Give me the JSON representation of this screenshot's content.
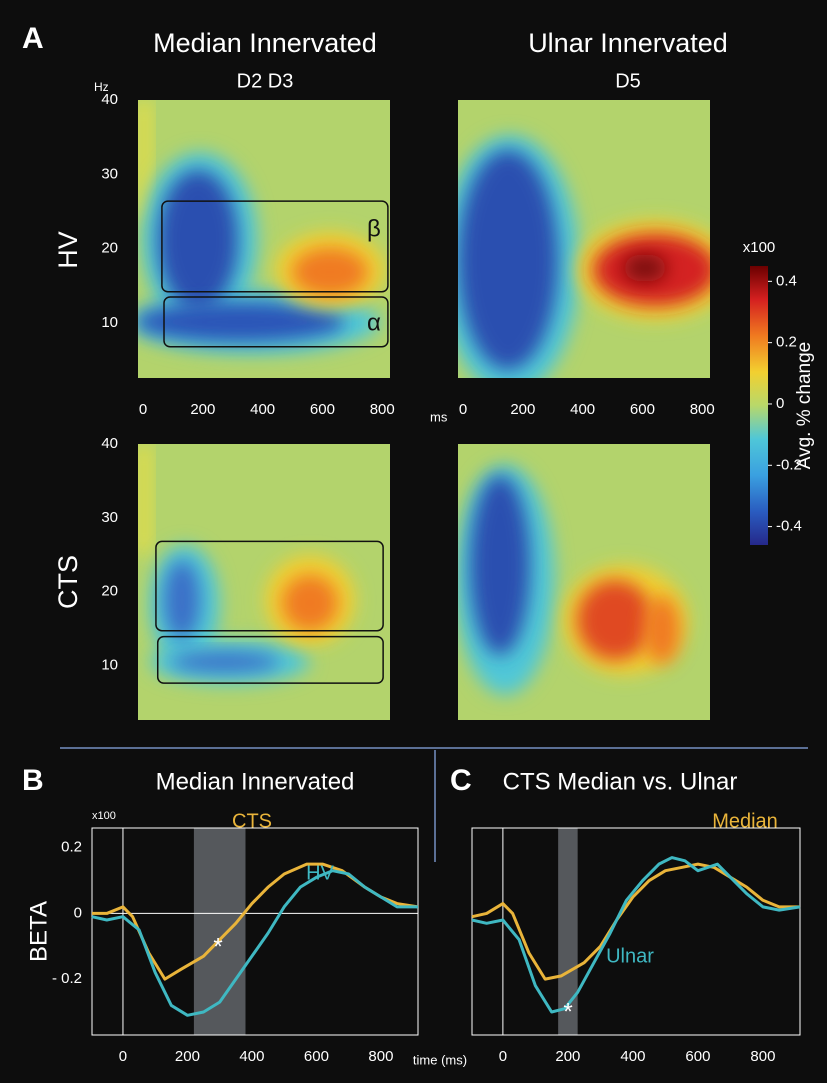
{
  "figure": {
    "panel_labels": [
      "A",
      "B",
      "C"
    ],
    "columns": [
      {
        "title": "Median Innervated",
        "subtitle": "D2 D3"
      },
      {
        "title": "Ulnar Innervated",
        "subtitle": "D5"
      }
    ],
    "rows": [
      "HV",
      "CTS"
    ]
  },
  "chart_data": [
    {
      "type": "heatmap",
      "xlim": [
        -17,
        826
      ],
      "ylim": [
        2.6,
        40
      ],
      "xticks": [
        0,
        200,
        400,
        600,
        800
      ],
      "yticks": [
        10,
        20,
        30,
        40
      ],
      "ylabel": "Hz",
      "xlabel": "ms",
      "boxes": [
        {
          "label": "β",
          "x": [
            63,
            819
          ],
          "y": [
            14.2,
            26.4
          ]
        },
        {
          "label": "α",
          "x": [
            70,
            819
          ],
          "y": [
            6.8,
            13.5
          ]
        }
      ]
    },
    {
      "type": "heatmap",
      "xlim": [
        -17,
        826
      ],
      "ylim": [
        2.6,
        40
      ],
      "xticks": [
        0,
        200,
        400,
        600,
        800
      ]
    },
    {
      "type": "heatmap",
      "xlim": [
        -17,
        826
      ],
      "ylim": [
        2.6,
        40
      ],
      "yticks": [
        10,
        20,
        30,
        40
      ],
      "boxes": [
        {
          "x": [
            43,
            803
          ],
          "y": [
            14.7,
            26.8
          ]
        },
        {
          "x": [
            49,
            803
          ],
          "y": [
            7.6,
            13.9
          ]
        }
      ]
    },
    {
      "type": "heatmap",
      "xlim": [
        -17,
        826
      ],
      "ylim": [
        2.6,
        40
      ]
    },
    {
      "type": "colorbar",
      "unit": "x100",
      "label": "Avg.  %  change",
      "ylim": [
        -0.46,
        0.45
      ],
      "ticks": [
        0.4,
        0.2,
        0,
        -0.2,
        -0.4
      ]
    },
    {
      "type": "line",
      "title": "Median Innervated",
      "ylabel": "BETA",
      "unit": "x100",
      "xlabel": "time (ms)",
      "xlim": [
        -96,
        915
      ],
      "ylim": [
        -0.37,
        0.26
      ],
      "xticks": [
        0,
        200,
        400,
        600,
        800
      ],
      "yticks": [
        0.2,
        0,
        {
          "value": -0.2,
          "label": "- 0.2"
        }
      ],
      "shade": [
        220,
        380
      ],
      "annotation": "*",
      "series": [
        {
          "name": "CTS",
          "color": "#e9b43a",
          "x": [
            -96,
            -50,
            0,
            30,
            80,
            130,
            180,
            250,
            300,
            350,
            400,
            450,
            500,
            570,
            620,
            680,
            750,
            800,
            850,
            915
          ],
          "values": [
            0,
            0,
            0.02,
            -0.01,
            -0.12,
            -0.2,
            -0.17,
            -0.13,
            -0.08,
            -0.03,
            0.03,
            0.08,
            0.12,
            0.15,
            0.15,
            0.13,
            0.08,
            0.05,
            0.03,
            0.02
          ]
        },
        {
          "name": "HV",
          "color": "#3fb8c2",
          "x": [
            -96,
            -50,
            0,
            50,
            100,
            150,
            200,
            250,
            300,
            350,
            400,
            450,
            500,
            550,
            600,
            650,
            700,
            750,
            800,
            850,
            915
          ],
          "values": [
            -0.01,
            -0.02,
            -0.01,
            -0.05,
            -0.18,
            -0.28,
            -0.31,
            -0.3,
            -0.27,
            -0.2,
            -0.13,
            -0.06,
            0.02,
            0.08,
            0.11,
            0.13,
            0.12,
            0.08,
            0.05,
            0.02,
            0.02
          ]
        }
      ]
    },
    {
      "type": "line",
      "title": "CTS  Median vs. Ulnar",
      "xlim": [
        -95,
        914
      ],
      "ylim": [
        -0.37,
        0.26
      ],
      "xticks": [
        0,
        200,
        400,
        600,
        800
      ],
      "shade": [
        170,
        230
      ],
      "annotation": "*",
      "series": [
        {
          "name": "Median",
          "color": "#e9b43a",
          "x": [
            -95,
            -50,
            0,
            30,
            80,
            130,
            180,
            250,
            300,
            350,
            400,
            450,
            500,
            550,
            600,
            650,
            700,
            750,
            800,
            850,
            914
          ],
          "values": [
            -0.01,
            0,
            0.03,
            0,
            -0.12,
            -0.2,
            -0.19,
            -0.15,
            -0.1,
            -0.02,
            0.05,
            0.1,
            0.13,
            0.14,
            0.15,
            0.14,
            0.11,
            0.08,
            0.04,
            0.02,
            0.02
          ]
        },
        {
          "name": "Ulnar",
          "color": "#3fb8c2",
          "x": [
            -95,
            -50,
            0,
            50,
            100,
            150,
            190,
            230,
            280,
            330,
            380,
            430,
            480,
            520,
            560,
            600,
            630,
            660,
            700,
            750,
            800,
            850,
            914
          ],
          "values": [
            -0.02,
            -0.03,
            -0.02,
            -0.08,
            -0.22,
            -0.3,
            -0.29,
            -0.24,
            -0.15,
            -0.06,
            0.04,
            0.1,
            0.15,
            0.17,
            0.16,
            0.13,
            0.14,
            0.15,
            0.11,
            0.06,
            0.02,
            0.01,
            0.02
          ]
        }
      ]
    }
  ]
}
